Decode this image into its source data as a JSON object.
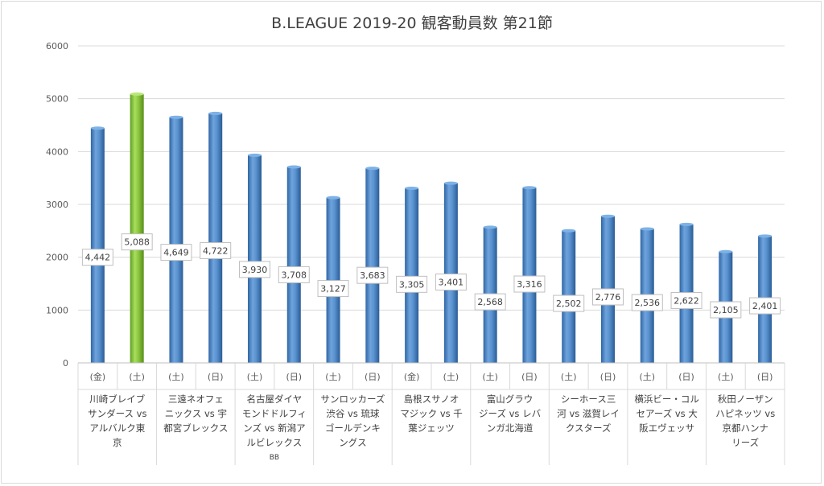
{
  "chart_data": {
    "type": "bar",
    "title": "B.LEAGUE 2019-20 観客動員数 第21節",
    "xlabel": "",
    "ylabel": "",
    "ylim": [
      0,
      6000
    ],
    "yticks": [
      "0",
      "1000",
      "2000",
      "3000",
      "4000",
      "5000",
      "6000"
    ],
    "grid": true,
    "legend": "none",
    "highlight_color": "#8dc63f",
    "bar_color": "#4a86c5",
    "groups": [
      {
        "label": [
          "川崎ブレイブ",
          "サンダース vs",
          "アルバルク東",
          "京"
        ],
        "days": [
          "(金)",
          "(土)"
        ],
        "values": [
          4442,
          5088
        ],
        "value_labels": [
          "4,442",
          "5,088"
        ],
        "highlight": [
          false,
          true
        ]
      },
      {
        "label": [
          "三遠ネオフェ",
          "ニックス vs 宇",
          "都宮ブレックス"
        ],
        "days": [
          "(土)",
          "(日)"
        ],
        "values": [
          4649,
          4722
        ],
        "value_labels": [
          "4,649",
          "4,722"
        ],
        "highlight": [
          false,
          false
        ]
      },
      {
        "label": [
          "名古屋ダイヤ",
          "モンドドルフィ",
          "ンズ vs 新潟ア",
          "ルビレックス",
          "BB"
        ],
        "days": [
          "(土)",
          "(日)"
        ],
        "values": [
          3930,
          3708
        ],
        "value_labels": [
          "3,930",
          "3,708"
        ],
        "highlight": [
          false,
          false
        ]
      },
      {
        "label": [
          "サンロッカーズ",
          "渋谷 vs 琉球",
          "ゴールデンキ",
          "ングス"
        ],
        "days": [
          "(土)",
          "(日)"
        ],
        "values": [
          3127,
          3683
        ],
        "value_labels": [
          "3,127",
          "3,683"
        ],
        "highlight": [
          false,
          false
        ]
      },
      {
        "label": [
          "島根スサノオ",
          "マジック vs 千",
          "葉ジェッツ"
        ],
        "days": [
          "(金)",
          "(土)"
        ],
        "values": [
          3305,
          3401
        ],
        "value_labels": [
          "3,305",
          "3,401"
        ],
        "highlight": [
          false,
          false
        ]
      },
      {
        "label": [
          "富山グラウ",
          "ジーズ vs レバ",
          "ンガ北海道"
        ],
        "days": [
          "(土)",
          "(日)"
        ],
        "values": [
          2568,
          3316
        ],
        "value_labels": [
          "2,568",
          "3,316"
        ],
        "highlight": [
          false,
          false
        ]
      },
      {
        "label": [
          "シーホース三",
          "河 vs 滋賀レイ",
          "クスターズ"
        ],
        "days": [
          "(土)",
          "(日)"
        ],
        "values": [
          2502,
          2776
        ],
        "value_labels": [
          "2,502",
          "2,776"
        ],
        "highlight": [
          false,
          false
        ]
      },
      {
        "label": [
          "横浜ビー・コル",
          "セアーズ vs 大",
          "阪エヴェッサ"
        ],
        "days": [
          "(土)",
          "(日)"
        ],
        "values": [
          2536,
          2622
        ],
        "value_labels": [
          "2,536",
          "2,622"
        ],
        "highlight": [
          false,
          false
        ]
      },
      {
        "label": [
          "秋田ノーザン",
          "ハピネッツ vs",
          "京都ハンナ",
          "リーズ"
        ],
        "days": [
          "(土)",
          "(日)"
        ],
        "values": [
          2105,
          2401
        ],
        "value_labels": [
          "2,105",
          "2,401"
        ],
        "highlight": [
          false,
          false
        ]
      }
    ]
  }
}
